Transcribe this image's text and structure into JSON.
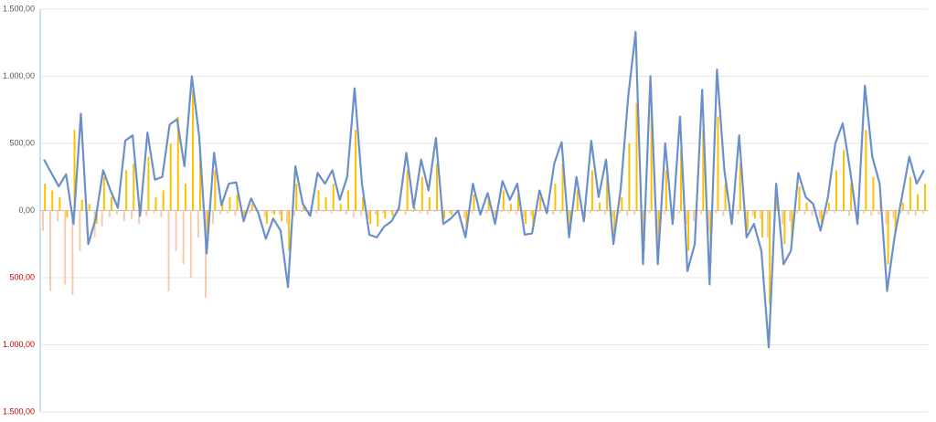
{
  "chart_data": {
    "type": "combo",
    "categories": [
      null,
      null,
      null,
      null,
      null,
      null,
      null,
      null,
      null,
      null,
      null,
      null,
      null,
      null,
      null,
      null,
      null,
      null,
      null,
      null,
      null,
      null,
      null,
      null,
      null,
      null,
      null,
      null,
      null,
      null,
      null,
      null,
      null,
      null,
      null,
      null,
      null,
      null,
      null,
      null,
      null,
      null,
      null,
      null,
      null,
      null,
      null,
      null,
      null,
      null,
      null,
      null,
      null,
      null,
      null,
      null,
      null,
      null,
      null,
      null,
      null,
      null,
      null,
      null,
      null,
      null,
      null,
      null,
      null,
      null,
      null,
      null,
      null,
      null,
      null,
      null,
      null,
      null,
      null,
      null,
      null,
      null,
      null,
      null,
      null,
      null,
      null,
      null,
      null,
      null,
      null,
      null,
      null,
      null,
      null,
      null,
      null,
      null,
      null,
      null,
      null,
      null,
      null,
      null,
      null,
      null,
      null,
      null,
      null,
      null,
      null,
      null,
      null,
      null,
      null,
      null,
      null,
      null,
      null,
      null
    ],
    "series": [
      {
        "type": "bar",
        "color": "#f8cbad",
        "values": [
          -150,
          -600,
          -80,
          -550,
          -630,
          -300,
          -100,
          -200,
          -120,
          -50,
          -30,
          -80,
          -60,
          -100,
          -40,
          -20,
          -50,
          -600,
          -300,
          -400,
          -500,
          -200,
          -650,
          -100,
          -30,
          -20,
          -40,
          -60,
          -20,
          -10,
          -50,
          -20,
          -30,
          -100,
          -40,
          -10,
          -30,
          -20,
          -10,
          -20,
          -10,
          -30,
          -50,
          -40,
          -60,
          -30,
          -20,
          -10,
          -20,
          -30,
          -10,
          -20,
          -30,
          -10,
          -40,
          -20,
          -10,
          -60,
          -20,
          -10,
          -20,
          -40,
          -10,
          -20,
          -30,
          -50,
          -40,
          -10,
          -20,
          -30,
          -20,
          -40,
          -10,
          -30,
          -20,
          -10,
          -30,
          -50,
          -20,
          -40,
          -30,
          -200,
          -20,
          -150,
          -30,
          -60,
          -20,
          -100,
          -80,
          -30,
          -150,
          -20,
          -40,
          -60,
          -30,
          -80,
          -40,
          -60,
          -200,
          -20,
          -100,
          -80,
          -20,
          -30,
          -40,
          -60,
          -30,
          -20,
          -10,
          -40,
          -30,
          -20,
          -40,
          -30,
          -100,
          -60,
          -20,
          -30,
          -40,
          -20
        ]
      },
      {
        "type": "bar",
        "color": "#ffc000",
        "values": [
          200,
          150,
          100,
          -50,
          600,
          80,
          50,
          -100,
          250,
          100,
          0,
          300,
          350,
          50,
          400,
          100,
          150,
          500,
          700,
          200,
          900,
          400,
          -200,
          300,
          50,
          100,
          120,
          -50,
          50,
          0,
          -100,
          -30,
          -80,
          -300,
          200,
          30,
          -20,
          150,
          100,
          200,
          50,
          150,
          600,
          100,
          -100,
          -120,
          -60,
          -40,
          10,
          300,
          20,
          250,
          100,
          350,
          -60,
          -30,
          0,
          -150,
          120,
          -20,
          80,
          -60,
          150,
          50,
          120,
          -100,
          -100,
          100,
          -10,
          200,
          350,
          -150,
          150,
          -50,
          300,
          60,
          250,
          -200,
          100,
          500,
          800,
          -300,
          750,
          -250,
          300,
          -60,
          450,
          -300,
          -150,
          600,
          -400,
          700,
          200,
          -60,
          350,
          -150,
          -60,
          -200,
          -700,
          120,
          -250,
          -200,
          180,
          60,
          30,
          -100,
          60,
          300,
          450,
          200,
          -60,
          600,
          250,
          120,
          -400,
          -150,
          60,
          250,
          120,
          200
        ]
      },
      {
        "type": "line",
        "color": "#6a8fcb",
        "values": [
          380,
          280,
          180,
          270,
          -100,
          720,
          -250,
          -60,
          300,
          150,
          20,
          520,
          560,
          -40,
          580,
          230,
          250,
          640,
          680,
          330,
          1000,
          550,
          -320,
          430,
          40,
          200,
          210,
          -80,
          90,
          -20,
          -210,
          -60,
          -150,
          -570,
          330,
          50,
          -40,
          280,
          200,
          300,
          80,
          250,
          910,
          200,
          -180,
          -200,
          -120,
          -80,
          20,
          430,
          20,
          380,
          150,
          540,
          -100,
          -60,
          0,
          -200,
          200,
          -30,
          130,
          -100,
          220,
          80,
          200,
          -180,
          -170,
          150,
          -20,
          350,
          510,
          -200,
          250,
          -80,
          520,
          100,
          380,
          -250,
          170,
          850,
          1330,
          -400,
          1000,
          -400,
          500,
          -100,
          700,
          -450,
          -250,
          900,
          -550,
          1050,
          300,
          -100,
          560,
          -200,
          -100,
          -300,
          -1020,
          200,
          -400,
          -300,
          280,
          100,
          50,
          -150,
          100,
          500,
          650,
          300,
          -100,
          930,
          400,
          200,
          -600,
          -200,
          100,
          400,
          200,
          300
        ]
      }
    ],
    "ylim": [
      -1500,
      1500
    ],
    "yticks": [
      {
        "value": -1500,
        "label": "1.500,00"
      },
      {
        "value": -1000,
        "label": "1.000,00"
      },
      {
        "value": -500,
        "label": "500,00"
      },
      {
        "value": 0,
        "label": "0,00"
      },
      {
        "value": 500,
        "label": "500,00"
      },
      {
        "value": 1000,
        "label": "1.000,00"
      },
      {
        "value": 1500,
        "label": "1.500,00"
      }
    ],
    "grid": true,
    "negative_label_color": "#c00000"
  }
}
